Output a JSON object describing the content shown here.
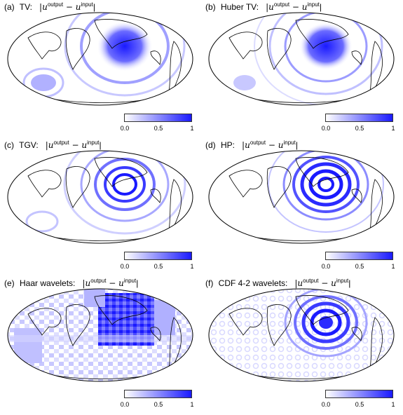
{
  "colors": {
    "accent": "#1a1aff",
    "mid": "#6b6bff",
    "light": "#d9d9ff",
    "coast": "#000000"
  },
  "panels": [
    {
      "label": "(a)",
      "name": "TV:",
      "expr_pre": "|u",
      "sup1": "output",
      "minus": " − u",
      "sup2": "input",
      "end": "|",
      "ticks": [
        "0.0",
        "0.5",
        "1"
      ]
    },
    {
      "label": "(b)",
      "name": "Huber TV:",
      "expr_pre": "|u",
      "sup1": "output",
      "minus": " − u",
      "sup2": "input",
      "end": "|",
      "ticks": [
        "0.0",
        "0.5",
        "1"
      ]
    },
    {
      "label": "(c)",
      "name": "TGV:",
      "expr_pre": "|u",
      "sup1": "output",
      "minus": " − u",
      "sup2": "input",
      "end": "|",
      "ticks": [
        "0.0",
        "0.5",
        "1"
      ]
    },
    {
      "label": "(d)",
      "name": "HP:",
      "expr_pre": "|u",
      "sup1": "output",
      "minus": " − u",
      "sup2": "input",
      "end": "|",
      "ticks": [
        "0.0",
        "0.5",
        "1"
      ]
    },
    {
      "label": "(e)",
      "name": "Haar wavelets:",
      "expr_pre": "|u",
      "sup1": "output",
      "minus": " − u",
      "sup2": "input",
      "end": "|",
      "ticks": [
        "0.0",
        "0.5",
        "1"
      ]
    },
    {
      "label": "(f)",
      "name": "CDF 4-2 wavelets:",
      "expr_pre": "|u",
      "sup1": "output",
      "minus": " − u",
      "sup2": "input",
      "end": "|",
      "ticks": [
        "0.0",
        "0.5",
        "1"
      ]
    }
  ]
}
